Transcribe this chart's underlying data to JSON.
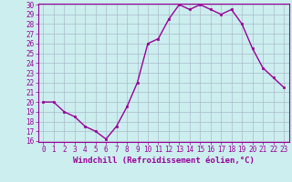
{
  "x": [
    0,
    1,
    2,
    3,
    4,
    5,
    6,
    7,
    8,
    9,
    10,
    11,
    12,
    13,
    14,
    15,
    16,
    17,
    18,
    19,
    20,
    21,
    22,
    23
  ],
  "y": [
    20,
    20,
    19,
    18.5,
    17.5,
    17,
    16.2,
    17.5,
    19.5,
    22,
    26,
    26.5,
    28.5,
    30,
    29.5,
    30,
    29.5,
    29,
    29.5,
    28,
    25.5,
    23.5,
    22.5,
    21.5
  ],
  "line_color": "#990099",
  "marker_color": "#990099",
  "bg_color": "#cceeee",
  "grid_color": "#aabbcc",
  "xlabel": "Windchill (Refroidissement éolien,°C)",
  "ylim": [
    16,
    30
  ],
  "xlim": [
    -0.5,
    23.5
  ],
  "yticks": [
    16,
    17,
    18,
    19,
    20,
    21,
    22,
    23,
    24,
    25,
    26,
    27,
    28,
    29,
    30
  ],
  "xticks": [
    0,
    1,
    2,
    3,
    4,
    5,
    6,
    7,
    8,
    9,
    10,
    11,
    12,
    13,
    14,
    15,
    16,
    17,
    18,
    19,
    20,
    21,
    22,
    23
  ],
  "tick_fontsize": 5.5,
  "xlabel_fontsize": 6.5,
  "linewidth": 1.0,
  "markersize": 2.0
}
